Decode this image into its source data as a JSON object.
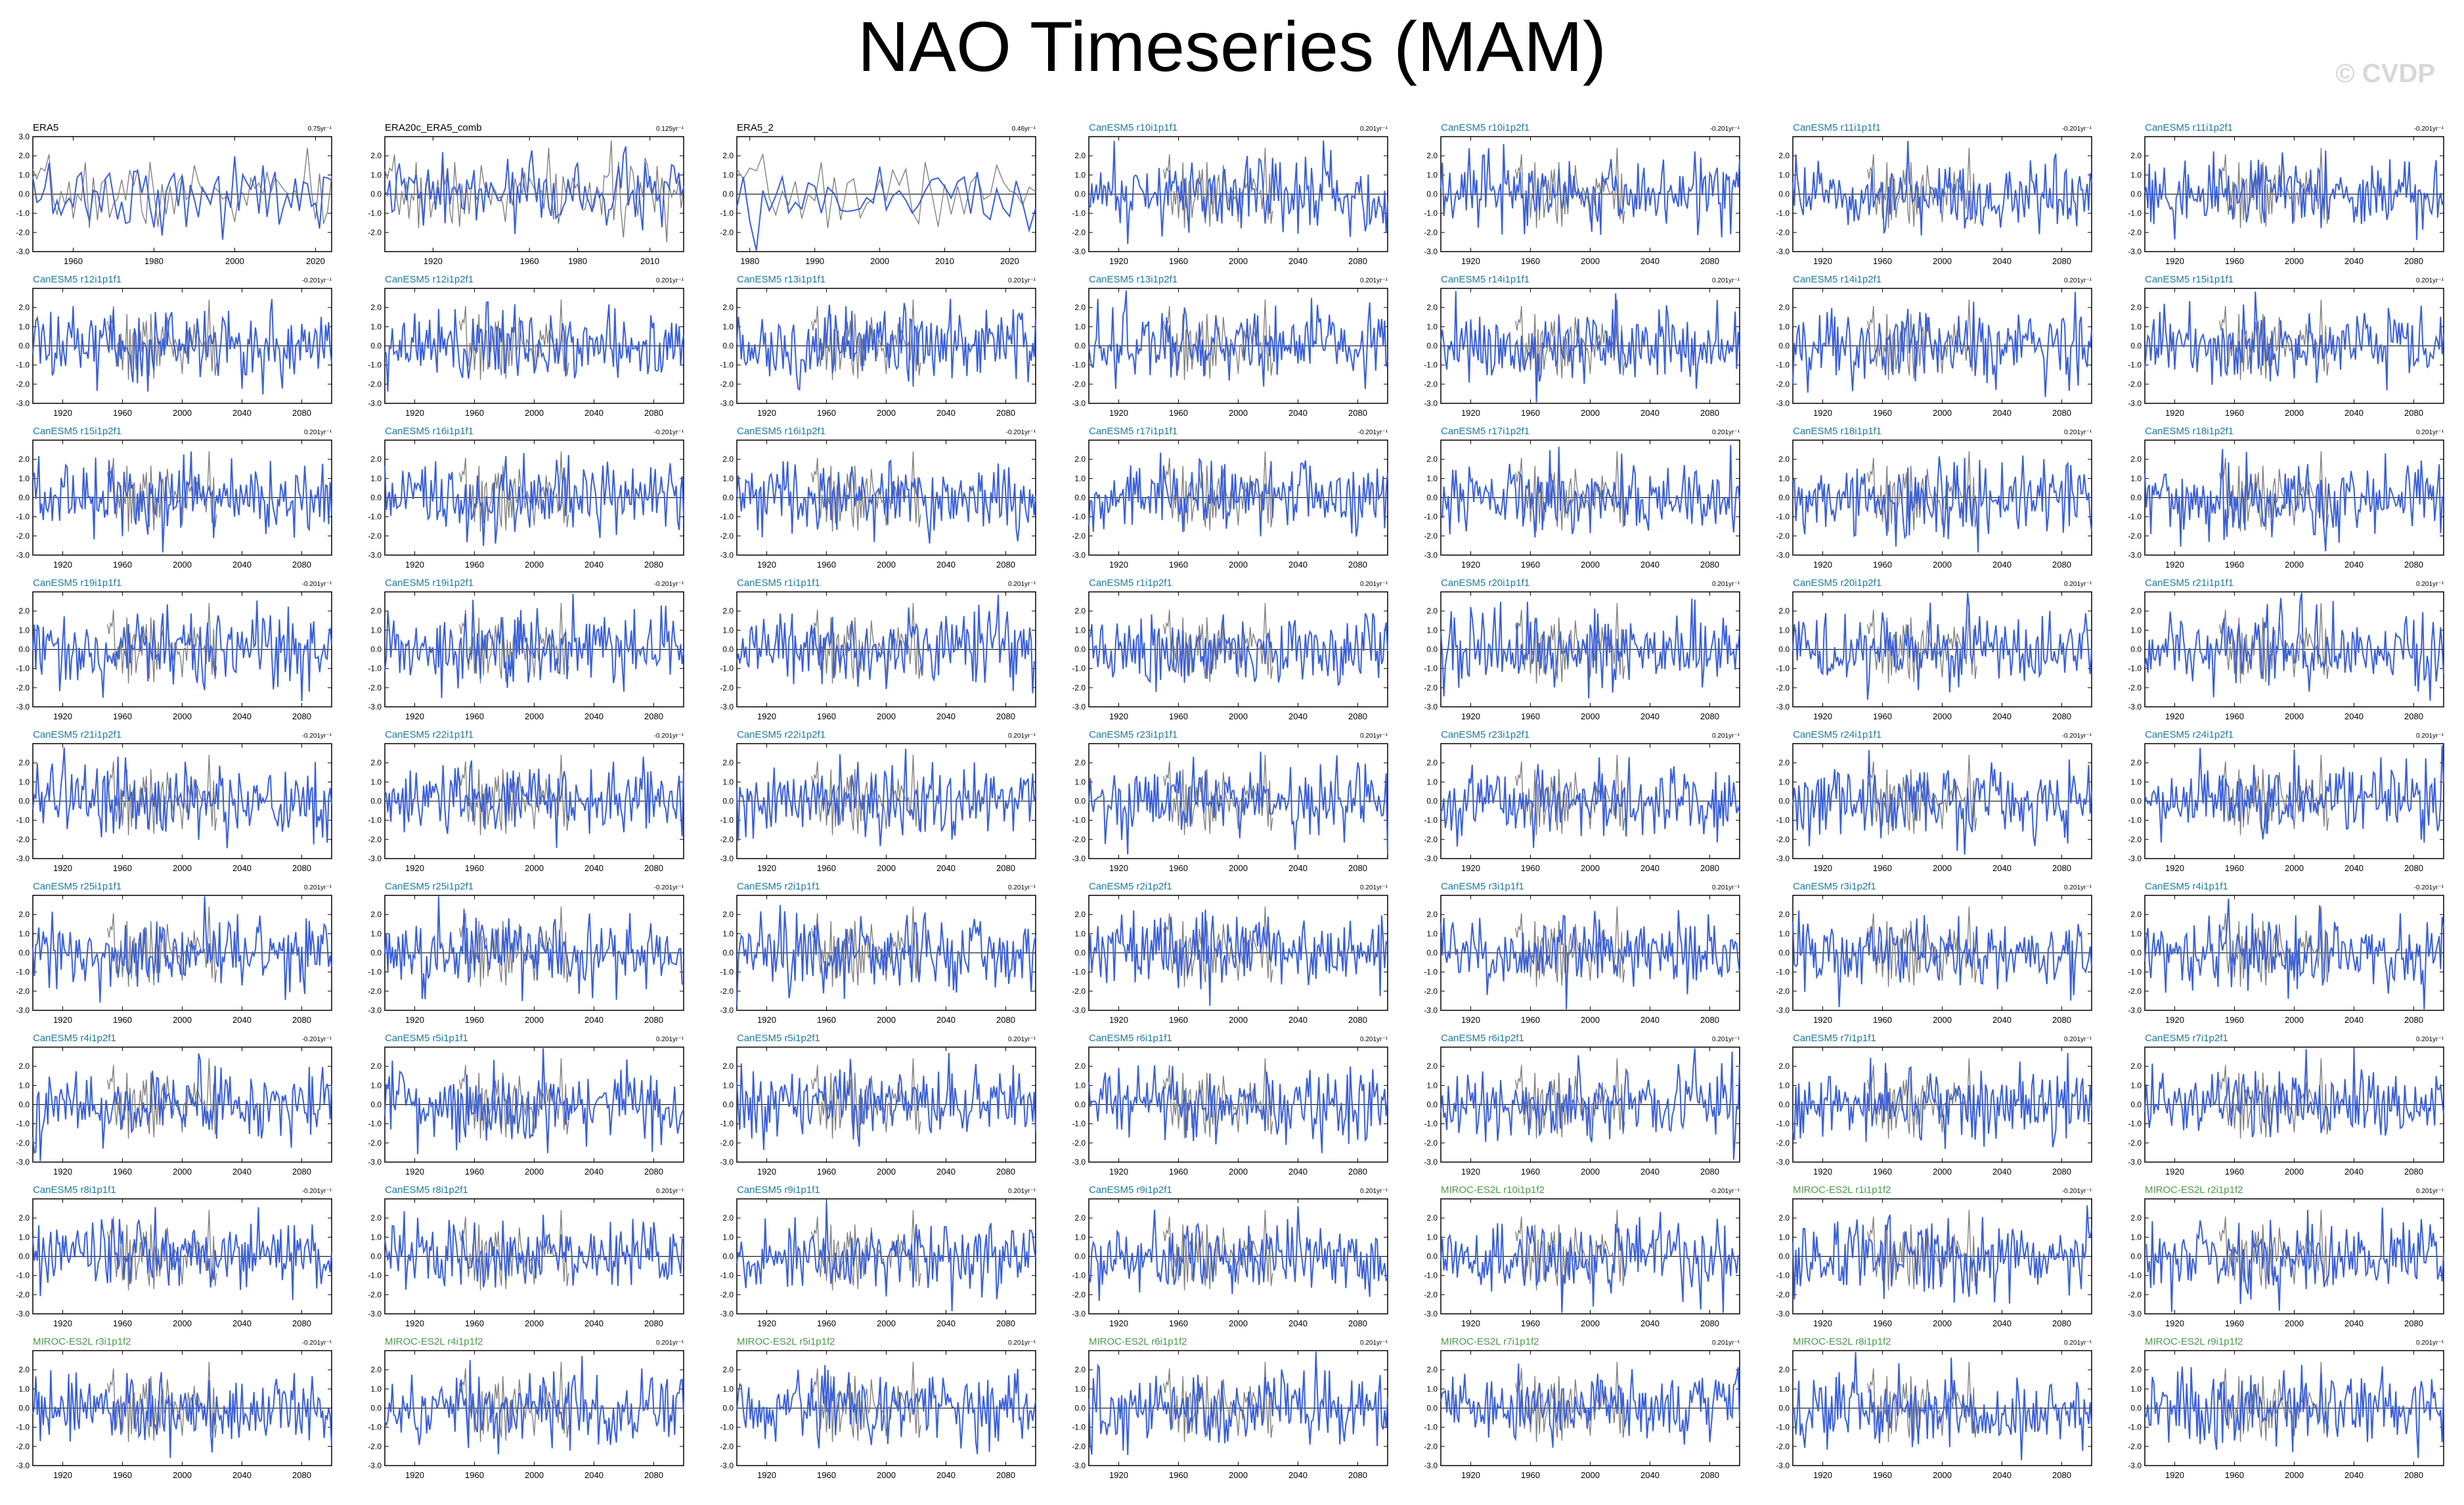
{
  "title": "NAO Timeseries (MAM)",
  "watermark": "© CVDP",
  "colors": {
    "obs_label": "#000000",
    "canesm_label": "#1e7a9c",
    "miroc_label": "#4a9a4a",
    "model_line": "#3a5fd9",
    "obs_line": "#808080"
  },
  "chart_data": [
    {
      "type": "line",
      "title": "ERA5",
      "trend": "0.75yr⁻¹",
      "label_group": "obs",
      "xlim": [
        1950,
        2024
      ],
      "xticks": [
        "1960",
        "1980",
        "2000",
        "2020"
      ],
      "ylim": [
        -3,
        3
      ],
      "yticks": [
        "3.0",
        "2.0",
        "1.0",
        "0.0",
        "-1.0",
        "-2.0",
        "-3.0"
      ]
    },
    {
      "type": "line",
      "title": "ERA20c_ERA5_comb",
      "trend": "0.125yr⁻¹",
      "label_group": "obs",
      "xlim": [
        1900,
        2024
      ],
      "xticks": [
        "1920",
        "1960",
        "1980",
        "2010"
      ],
      "ylim": [
        -3,
        3
      ],
      "yticks": [
        "2.0",
        "1.0",
        "0.0",
        "-1.0",
        "-2.0"
      ]
    },
    {
      "type": "line",
      "title": "ERA5_2",
      "trend": "0.46yr⁻¹",
      "label_group": "obs",
      "xlim": [
        1978,
        2024
      ],
      "xticks": [
        "1980",
        "1990",
        "2000",
        "2010",
        "2020"
      ],
      "ylim": [
        -3,
        3
      ],
      "yticks": [
        "2.0",
        "1.0",
        "0.0",
        "-1.0",
        "-2.0"
      ]
    },
    {
      "type": "line",
      "title": "CanESM5 r10i1p1f1",
      "trend": "0.201yr⁻¹",
      "label_group": "canesm"
    },
    {
      "type": "line",
      "title": "CanESM5 r10i1p2f1",
      "trend": "-0.201yr⁻¹",
      "label_group": "canesm"
    },
    {
      "type": "line",
      "title": "CanESM5 r11i1p1f1",
      "trend": "-0.201yr⁻¹",
      "label_group": "canesm"
    },
    {
      "type": "line",
      "title": "CanESM5 r11i1p2f1",
      "trend": "-0.201yr⁻¹",
      "label_group": "canesm"
    },
    {
      "type": "line",
      "title": "CanESM5 r12i1p1f1",
      "trend": "-0.201yr⁻¹",
      "label_group": "canesm"
    },
    {
      "type": "line",
      "title": "CanESM5 r12i1p2f1",
      "trend": "0.201yr⁻¹",
      "label_group": "canesm"
    },
    {
      "type": "line",
      "title": "CanESM5 r13i1p1f1",
      "trend": "0.201yr⁻¹",
      "label_group": "canesm"
    },
    {
      "type": "line",
      "title": "CanESM5 r13i1p2f1",
      "trend": "0.201yr⁻¹",
      "label_group": "canesm"
    },
    {
      "type": "line",
      "title": "CanESM5 r14i1p1f1",
      "trend": "0.201yr⁻¹",
      "label_group": "canesm"
    },
    {
      "type": "line",
      "title": "CanESM5 r14i1p2f1",
      "trend": "0.201yr⁻¹",
      "label_group": "canesm"
    },
    {
      "type": "line",
      "title": "CanESM5 r15i1p1f1",
      "trend": "0.201yr⁻¹",
      "label_group": "canesm"
    },
    {
      "type": "line",
      "title": "CanESM5 r15i1p2f1",
      "trend": "0.201yr⁻¹",
      "label_group": "canesm"
    },
    {
      "type": "line",
      "title": "CanESM5 r16i1p1f1",
      "trend": "-0.201yr⁻¹",
      "label_group": "canesm"
    },
    {
      "type": "line",
      "title": "CanESM5 r16i1p2f1",
      "trend": "-0.201yr⁻¹",
      "label_group": "canesm"
    },
    {
      "type": "line",
      "title": "CanESM5 r17i1p1f1",
      "trend": "-0.201yr⁻¹",
      "label_group": "canesm"
    },
    {
      "type": "line",
      "title": "CanESM5 r17i1p2f1",
      "trend": "0.201yr⁻¹",
      "label_group": "canesm"
    },
    {
      "type": "line",
      "title": "CanESM5 r18i1p1f1",
      "trend": "0.201yr⁻¹",
      "label_group": "canesm"
    },
    {
      "type": "line",
      "title": "CanESM5 r18i1p2f1",
      "trend": "0.201yr⁻¹",
      "label_group": "canesm"
    },
    {
      "type": "line",
      "title": "CanESM5 r19i1p1f1",
      "trend": "-0.201yr⁻¹",
      "label_group": "canesm"
    },
    {
      "type": "line",
      "title": "CanESM5 r19i1p2f1",
      "trend": "-0.201yr⁻¹",
      "label_group": "canesm"
    },
    {
      "type": "line",
      "title": "CanESM5 r1i1p1f1",
      "trend": "0.201yr⁻¹",
      "label_group": "canesm"
    },
    {
      "type": "line",
      "title": "CanESM5 r1i1p2f1",
      "trend": "0.201yr⁻¹",
      "label_group": "canesm"
    },
    {
      "type": "line",
      "title": "CanESM5 r20i1p1f1",
      "trend": "0.201yr⁻¹",
      "label_group": "canesm"
    },
    {
      "type": "line",
      "title": "CanESM5 r20i1p2f1",
      "trend": "0.201yr⁻¹",
      "label_group": "canesm"
    },
    {
      "type": "line",
      "title": "CanESM5 r21i1p1f1",
      "trend": "0.201yr⁻¹",
      "label_group": "canesm"
    },
    {
      "type": "line",
      "title": "CanESM5 r21i1p2f1",
      "trend": "-0.201yr⁻¹",
      "label_group": "canesm"
    },
    {
      "type": "line",
      "title": "CanESM5 r22i1p1f1",
      "trend": "-0.201yr⁻¹",
      "label_group": "canesm"
    },
    {
      "type": "line",
      "title": "CanESM5 r22i1p2f1",
      "trend": "0.201yr⁻¹",
      "label_group": "canesm"
    },
    {
      "type": "line",
      "title": "CanESM5 r23i1p1f1",
      "trend": "0.201yr⁻¹",
      "label_group": "canesm"
    },
    {
      "type": "line",
      "title": "CanESM5 r23i1p2f1",
      "trend": "0.201yr⁻¹",
      "label_group": "canesm"
    },
    {
      "type": "line",
      "title": "CanESM5 r24i1p1f1",
      "trend": "-0.201yr⁻¹",
      "label_group": "canesm"
    },
    {
      "type": "line",
      "title": "CanESM5 r24i1p2f1",
      "trend": "0.201yr⁻¹",
      "label_group": "canesm"
    },
    {
      "type": "line",
      "title": "CanESM5 r25i1p1f1",
      "trend": "0.201yr⁻¹",
      "label_group": "canesm"
    },
    {
      "type": "line",
      "title": "CanESM5 r25i1p2f1",
      "trend": "-0.201yr⁻¹",
      "label_group": "canesm"
    },
    {
      "type": "line",
      "title": "CanESM5 r2i1p1f1",
      "trend": "0.201yr⁻¹",
      "label_group": "canesm"
    },
    {
      "type": "line",
      "title": "CanESM5 r2i1p2f1",
      "trend": "0.201yr⁻¹",
      "label_group": "canesm"
    },
    {
      "type": "line",
      "title": "CanESM5 r3i1p1f1",
      "trend": "0.201yr⁻¹",
      "label_group": "canesm"
    },
    {
      "type": "line",
      "title": "CanESM5 r3i1p2f1",
      "trend": "0.201yr⁻¹",
      "label_group": "canesm"
    },
    {
      "type": "line",
      "title": "CanESM5 r4i1p1f1",
      "trend": "-0.201yr⁻¹",
      "label_group": "canesm"
    },
    {
      "type": "line",
      "title": "CanESM5 r4i1p2f1",
      "trend": "-0.201yr⁻¹",
      "label_group": "canesm"
    },
    {
      "type": "line",
      "title": "CanESM5 r5i1p1f1",
      "trend": "0.201yr⁻¹",
      "label_group": "canesm"
    },
    {
      "type": "line",
      "title": "CanESM5 r5i1p2f1",
      "trend": "0.201yr⁻¹",
      "label_group": "canesm"
    },
    {
      "type": "line",
      "title": "CanESM5 r6i1p1f1",
      "trend": "0.201yr⁻¹",
      "label_group": "canesm"
    },
    {
      "type": "line",
      "title": "CanESM5 r6i1p2f1",
      "trend": "0.201yr⁻¹",
      "label_group": "canesm"
    },
    {
      "type": "line",
      "title": "CanESM5 r7i1p1f1",
      "trend": "0.201yr⁻¹",
      "label_group": "canesm"
    },
    {
      "type": "line",
      "title": "CanESM5 r7i1p2f1",
      "trend": "0.201yr⁻¹",
      "label_group": "canesm"
    },
    {
      "type": "line",
      "title": "CanESM5 r8i1p1f1",
      "trend": "-0.201yr⁻¹",
      "label_group": "canesm"
    },
    {
      "type": "line",
      "title": "CanESM5 r8i1p2f1",
      "trend": "0.201yr⁻¹",
      "label_group": "canesm"
    },
    {
      "type": "line",
      "title": "CanESM5 r9i1p1f1",
      "trend": "0.201yr⁻¹",
      "label_group": "canesm"
    },
    {
      "type": "line",
      "title": "CanESM5 r9i1p2f1",
      "trend": "0.201yr⁻¹",
      "label_group": "canesm"
    },
    {
      "type": "line",
      "title": "MIROC-ES2L r10i1p1f2",
      "trend": "-0.201yr⁻¹",
      "label_group": "miroc"
    },
    {
      "type": "line",
      "title": "MIROC-ES2L r1i1p1f2",
      "trend": "-0.201yr⁻¹",
      "label_group": "miroc"
    },
    {
      "type": "line",
      "title": "MIROC-ES2L r2i1p1f2",
      "trend": "0.201yr⁻¹",
      "label_group": "miroc"
    },
    {
      "type": "line",
      "title": "MIROC-ES2L r3i1p1f2",
      "trend": "-0.201yr⁻¹",
      "label_group": "miroc"
    },
    {
      "type": "line",
      "title": "MIROC-ES2L r4i1p1f2",
      "trend": "0.201yr⁻¹",
      "label_group": "miroc"
    },
    {
      "type": "line",
      "title": "MIROC-ES2L r5i1p1f2",
      "trend": "0.201yr⁻¹",
      "label_group": "miroc"
    },
    {
      "type": "line",
      "title": "MIROC-ES2L r6i1p1f2",
      "trend": "0.201yr⁻¹",
      "label_group": "miroc"
    },
    {
      "type": "line",
      "title": "MIROC-ES2L r7i1p1f2",
      "trend": "0.201yr⁻¹",
      "label_group": "miroc"
    },
    {
      "type": "line",
      "title": "MIROC-ES2L r8i1p1f2",
      "trend": "0.201yr⁻¹",
      "label_group": "miroc"
    },
    {
      "type": "line",
      "title": "MIROC-ES2L r9i1p1f2",
      "trend": "0.201yr⁻¹",
      "label_group": "miroc"
    }
  ],
  "model_axis": {
    "xlim": [
      1900,
      2100
    ],
    "xticks": [
      "1920",
      "1960",
      "2000",
      "2040",
      "2080"
    ],
    "ylim": [
      -3,
      3
    ],
    "yticks": [
      "2.0",
      "1.0",
      "0.0",
      "-1.0",
      "-2.0",
      "-3.0"
    ]
  }
}
